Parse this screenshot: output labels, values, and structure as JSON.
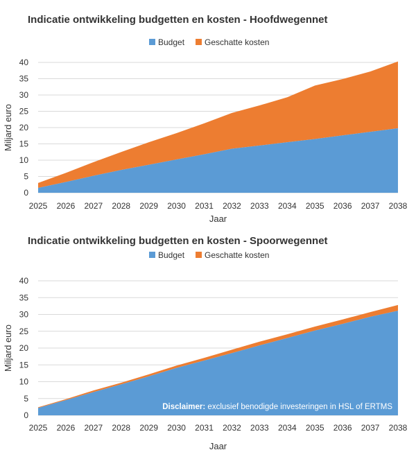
{
  "colors": {
    "budget": "#5b9bd5",
    "costs": "#ed7d31",
    "grid": "#d9d9d9",
    "text": "#333333"
  },
  "chart_data": [
    {
      "type": "area",
      "stacked": true,
      "title": "Indicatie ontwikkeling budgetten en kosten - Hoofdwegennet",
      "xlabel": "Jaar",
      "ylabel": "Miljard euro",
      "ylim": [
        0,
        40
      ],
      "yticks": [
        "0",
        "5",
        "10",
        "15",
        "20",
        "25",
        "30",
        "35",
        "40"
      ],
      "grid": true,
      "legend_position": "top",
      "categories": [
        "2025",
        "2026",
        "2027",
        "2028",
        "2029",
        "2030",
        "2031",
        "2032",
        "2033",
        "2034",
        "2035",
        "2036",
        "2037",
        "2038"
      ],
      "series": [
        {
          "name": "Budget",
          "values": [
            1.5,
            3.3,
            5.2,
            7.0,
            8.6,
            10.2,
            11.8,
            13.5,
            14.5,
            15.5,
            16.5,
            17.6,
            18.7,
            19.8
          ]
        },
        {
          "name": "Geschatte kosten",
          "values": [
            1.5,
            2.8,
            4.2,
            5.5,
            6.9,
            8.1,
            9.5,
            11.0,
            12.3,
            13.8,
            16.4,
            17.3,
            18.5,
            20.5
          ]
        }
      ]
    },
    {
      "type": "area",
      "stacked": true,
      "title": "Indicatie ontwikkeling budgetten en kosten - Spoorwegennet",
      "xlabel": "Jaar",
      "ylabel": "Miljard euro",
      "ylim": [
        0,
        40
      ],
      "yticks": [
        "0",
        "5",
        "10",
        "15",
        "20",
        "25",
        "30",
        "35",
        "40"
      ],
      "grid": true,
      "legend_position": "top",
      "categories": [
        "2025",
        "2026",
        "2027",
        "2028",
        "2029",
        "2030",
        "2031",
        "2032",
        "2033",
        "2034",
        "2035",
        "2036",
        "2037",
        "2038"
      ],
      "series": [
        {
          "name": "Budget",
          "values": [
            2.2,
            4.5,
            6.9,
            9.2,
            11.6,
            14.1,
            16.3,
            18.5,
            20.8,
            23.0,
            25.2,
            27.2,
            29.3,
            31.1
          ]
        },
        {
          "name": "Geschatte kosten",
          "values": [
            0.2,
            0.3,
            0.5,
            0.5,
            0.6,
            0.7,
            0.8,
            1.0,
            1.1,
            1.1,
            1.2,
            1.3,
            1.4,
            1.7
          ]
        }
      ],
      "annotation": {
        "bold": "Disclaimer:",
        "text": " exclusief benodigde investeringen in HSL of ERTMS"
      }
    }
  ]
}
